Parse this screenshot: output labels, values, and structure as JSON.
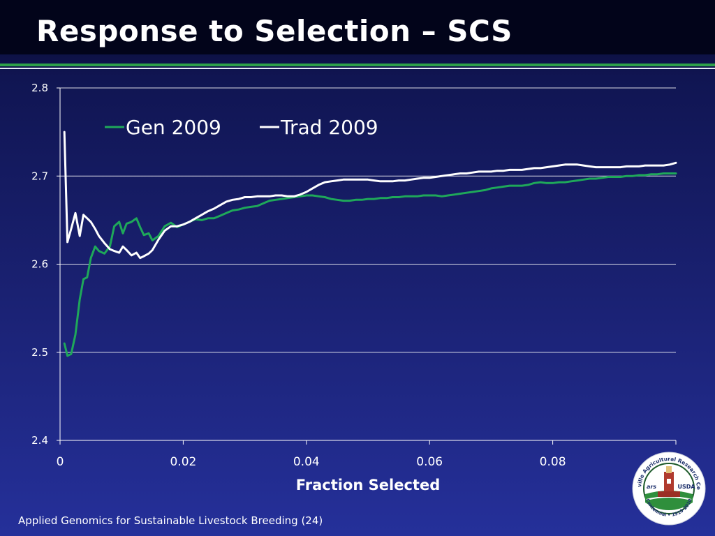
{
  "slide": {
    "title": "Response to Selection – SCS",
    "footer": "Applied Genomics for Sustainable Livestock Breeding (24)"
  },
  "logo": {
    "arc_top": "Beltsville Agricultural Research Center",
    "arc_bottom": "Centennial • 1910-2010",
    "left_mark": "ars",
    "right_mark": "USDA"
  },
  "colors": {
    "gen": "#1fa85a",
    "trad": "#ffffff",
    "grid": "#ffffff",
    "text": "#ffffff"
  },
  "chart_data": {
    "type": "line",
    "xlabel": "Fraction Selected",
    "ylabel": "",
    "xlim": [
      0,
      0.1
    ],
    "ylim": [
      2.4,
      2.8
    ],
    "xticks": [
      0,
      0.02,
      0.04,
      0.06,
      0.08,
      0.1
    ],
    "xtick_labels": [
      "0",
      "0.02",
      "0.04",
      "0.06",
      "0.08",
      ""
    ],
    "yticks": [
      2.4,
      2.5,
      2.6,
      2.7,
      2.8
    ],
    "ytick_labels": [
      "2.4",
      "2.5",
      "2.6",
      "2.7",
      "2.8"
    ],
    "grid": "horizontal",
    "legend": "top-left, inside",
    "series": [
      {
        "name": "Gen 2009",
        "color": "#1fa85a",
        "x": [
          0.0007,
          0.0012,
          0.0018,
          0.0025,
          0.0032,
          0.0038,
          0.0044,
          0.005,
          0.0057,
          0.0063,
          0.0072,
          0.0081,
          0.0088,
          0.0096,
          0.0102,
          0.0108,
          0.0116,
          0.0124,
          0.013,
          0.0136,
          0.0144,
          0.015,
          0.016,
          0.017,
          0.018,
          0.019,
          0.02,
          0.021,
          0.022,
          0.023,
          0.024,
          0.025,
          0.026,
          0.027,
          0.028,
          0.029,
          0.03,
          0.031,
          0.032,
          0.033,
          0.034,
          0.035,
          0.036,
          0.037,
          0.038,
          0.039,
          0.04,
          0.041,
          0.042,
          0.043,
          0.044,
          0.045,
          0.046,
          0.047,
          0.048,
          0.049,
          0.05,
          0.051,
          0.052,
          0.053,
          0.054,
          0.055,
          0.056,
          0.057,
          0.058,
          0.059,
          0.06,
          0.061,
          0.062,
          0.063,
          0.064,
          0.065,
          0.066,
          0.067,
          0.068,
          0.069,
          0.07,
          0.071,
          0.072,
          0.073,
          0.074,
          0.075,
          0.076,
          0.077,
          0.078,
          0.079,
          0.08,
          0.081,
          0.082,
          0.083,
          0.084,
          0.085,
          0.086,
          0.087,
          0.088,
          0.089,
          0.09,
          0.091,
          0.092,
          0.093,
          0.094,
          0.095,
          0.096,
          0.097,
          0.098,
          0.099,
          0.1
        ],
        "values": [
          2.51,
          2.496,
          2.498,
          2.52,
          2.56,
          2.583,
          2.585,
          2.607,
          2.62,
          2.615,
          2.612,
          2.62,
          2.643,
          2.648,
          2.635,
          2.646,
          2.648,
          2.652,
          2.642,
          2.633,
          2.635,
          2.627,
          2.632,
          2.643,
          2.647,
          2.642,
          2.645,
          2.648,
          2.651,
          2.65,
          2.652,
          2.652,
          2.655,
          2.658,
          2.661,
          2.662,
          2.664,
          2.665,
          2.666,
          2.669,
          2.672,
          2.673,
          2.674,
          2.675,
          2.676,
          2.677,
          2.678,
          2.678,
          2.677,
          2.676,
          2.674,
          2.673,
          2.672,
          2.672,
          2.673,
          2.673,
          2.674,
          2.674,
          2.675,
          2.675,
          2.676,
          2.676,
          2.677,
          2.677,
          2.677,
          2.678,
          2.678,
          2.678,
          2.677,
          2.678,
          2.679,
          2.68,
          2.681,
          2.682,
          2.683,
          2.684,
          2.686,
          2.687,
          2.688,
          2.689,
          2.689,
          2.689,
          2.69,
          2.692,
          2.693,
          2.692,
          2.692,
          2.693,
          2.693,
          2.694,
          2.695,
          2.696,
          2.697,
          2.697,
          2.698,
          2.699,
          2.699,
          2.699,
          2.7,
          2.7,
          2.701,
          2.701,
          2.702,
          2.702,
          2.703,
          2.703,
          2.703
        ]
      },
      {
        "name": "Trad 2009",
        "color": "#ffffff",
        "x": [
          0.0007,
          0.0012,
          0.0018,
          0.0025,
          0.0032,
          0.0038,
          0.0044,
          0.005,
          0.0057,
          0.0063,
          0.0072,
          0.0081,
          0.0088,
          0.0096,
          0.0102,
          0.0108,
          0.0116,
          0.0124,
          0.013,
          0.0136,
          0.0144,
          0.015,
          0.016,
          0.017,
          0.018,
          0.019,
          0.02,
          0.021,
          0.022,
          0.023,
          0.024,
          0.025,
          0.026,
          0.027,
          0.028,
          0.029,
          0.03,
          0.031,
          0.032,
          0.033,
          0.034,
          0.035,
          0.036,
          0.037,
          0.038,
          0.039,
          0.04,
          0.041,
          0.042,
          0.043,
          0.044,
          0.045,
          0.046,
          0.047,
          0.048,
          0.049,
          0.05,
          0.051,
          0.052,
          0.053,
          0.054,
          0.055,
          0.056,
          0.057,
          0.058,
          0.059,
          0.06,
          0.061,
          0.062,
          0.063,
          0.064,
          0.065,
          0.066,
          0.067,
          0.068,
          0.069,
          0.07,
          0.071,
          0.072,
          0.073,
          0.074,
          0.075,
          0.076,
          0.077,
          0.078,
          0.079,
          0.08,
          0.081,
          0.082,
          0.083,
          0.084,
          0.085,
          0.086,
          0.087,
          0.088,
          0.089,
          0.09,
          0.091,
          0.092,
          0.093,
          0.094,
          0.095,
          0.096,
          0.097,
          0.098,
          0.099,
          0.1
        ],
        "values": [
          2.75,
          2.625,
          2.64,
          2.658,
          2.632,
          2.656,
          2.652,
          2.648,
          2.64,
          2.632,
          2.624,
          2.617,
          2.615,
          2.613,
          2.62,
          2.616,
          2.61,
          2.613,
          2.607,
          2.609,
          2.612,
          2.616,
          2.628,
          2.638,
          2.643,
          2.643,
          2.645,
          2.648,
          2.652,
          2.656,
          2.66,
          2.663,
          2.667,
          2.671,
          2.673,
          2.674,
          2.676,
          2.676,
          2.677,
          2.677,
          2.677,
          2.678,
          2.678,
          2.677,
          2.677,
          2.679,
          2.682,
          2.686,
          2.69,
          2.693,
          2.694,
          2.695,
          2.696,
          2.696,
          2.696,
          2.696,
          2.696,
          2.695,
          2.694,
          2.694,
          2.694,
          2.695,
          2.695,
          2.696,
          2.697,
          2.698,
          2.698,
          2.699,
          2.7,
          2.701,
          2.702,
          2.703,
          2.703,
          2.704,
          2.705,
          2.705,
          2.705,
          2.706,
          2.706,
          2.707,
          2.707,
          2.707,
          2.708,
          2.709,
          2.709,
          2.71,
          2.711,
          2.712,
          2.713,
          2.713,
          2.713,
          2.712,
          2.711,
          2.71,
          2.71,
          2.71,
          2.71,
          2.71,
          2.711,
          2.711,
          2.711,
          2.712,
          2.712,
          2.712,
          2.712,
          2.713,
          2.715
        ]
      }
    ]
  }
}
